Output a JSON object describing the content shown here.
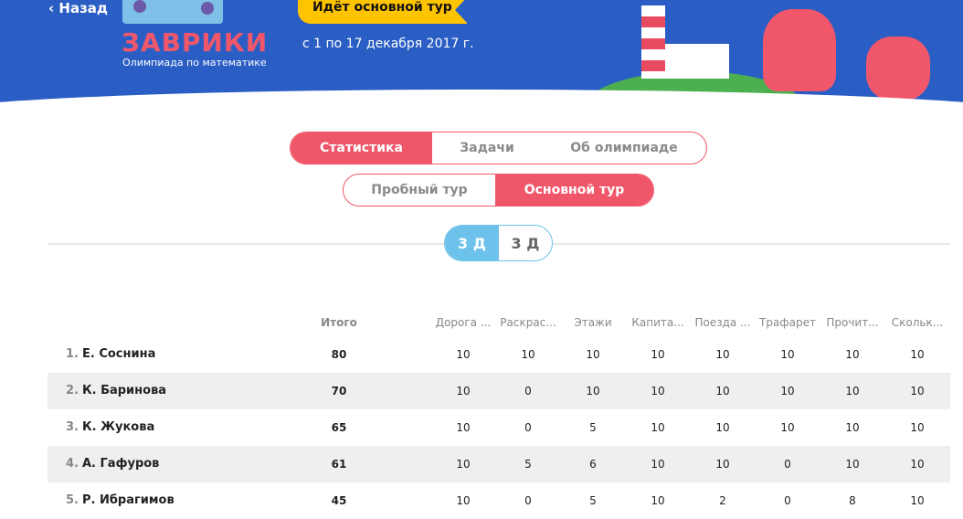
{
  "header": {
    "back_label": "‹ Назад",
    "logo_title": "ЗАВРИКИ",
    "logo_subtitle": "Олимпиада по математике",
    "status_ribbon": "Идёт основной тур",
    "dates": "с 1 по 17 декабря 2017 г."
  },
  "tabs": [
    {
      "label": "Статистика",
      "active": true
    },
    {
      "label": "Задачи",
      "active": false
    },
    {
      "label": "Об олимпиаде",
      "active": false
    }
  ],
  "rounds": [
    {
      "label": "Пробный тур",
      "active": false
    },
    {
      "label": "Основной тур",
      "active": true
    }
  ],
  "grades": [
    {
      "label": "3 Д",
      "active": true
    },
    {
      "label": "3 Д",
      "active": false
    }
  ],
  "colors": {
    "header": "#2b5ec5",
    "accent": "#f0566a",
    "grade": "#6cc2ea",
    "ribbon": "#ffc400"
  },
  "table": {
    "total_header": "Итого",
    "columns": [
      "Дорога ...",
      "Раскрас...",
      "Этажи",
      "Капита...",
      "Поезда ...",
      "Трафарет",
      "Прочит...",
      "Скольк..."
    ],
    "rows": [
      {
        "rank": "1.",
        "name": "Е. Соснина",
        "total": "80",
        "scores": [
          "10",
          "10",
          "10",
          "10",
          "10",
          "10",
          "10",
          "10"
        ]
      },
      {
        "rank": "2.",
        "name": "К. Баринова",
        "total": "70",
        "scores": [
          "10",
          "0",
          "10",
          "10",
          "10",
          "10",
          "10",
          "10"
        ]
      },
      {
        "rank": "3.",
        "name": "К. Жукова",
        "total": "65",
        "scores": [
          "10",
          "0",
          "5",
          "10",
          "10",
          "10",
          "10",
          "10"
        ]
      },
      {
        "rank": "4.",
        "name": "А. Гафуров",
        "total": "61",
        "scores": [
          "10",
          "5",
          "6",
          "10",
          "10",
          "0",
          "10",
          "10"
        ]
      },
      {
        "rank": "5.",
        "name": "Р. Ибрагимов",
        "total": "45",
        "scores": [
          "10",
          "0",
          "5",
          "10",
          "2",
          "0",
          "8",
          "10"
        ]
      }
    ]
  }
}
